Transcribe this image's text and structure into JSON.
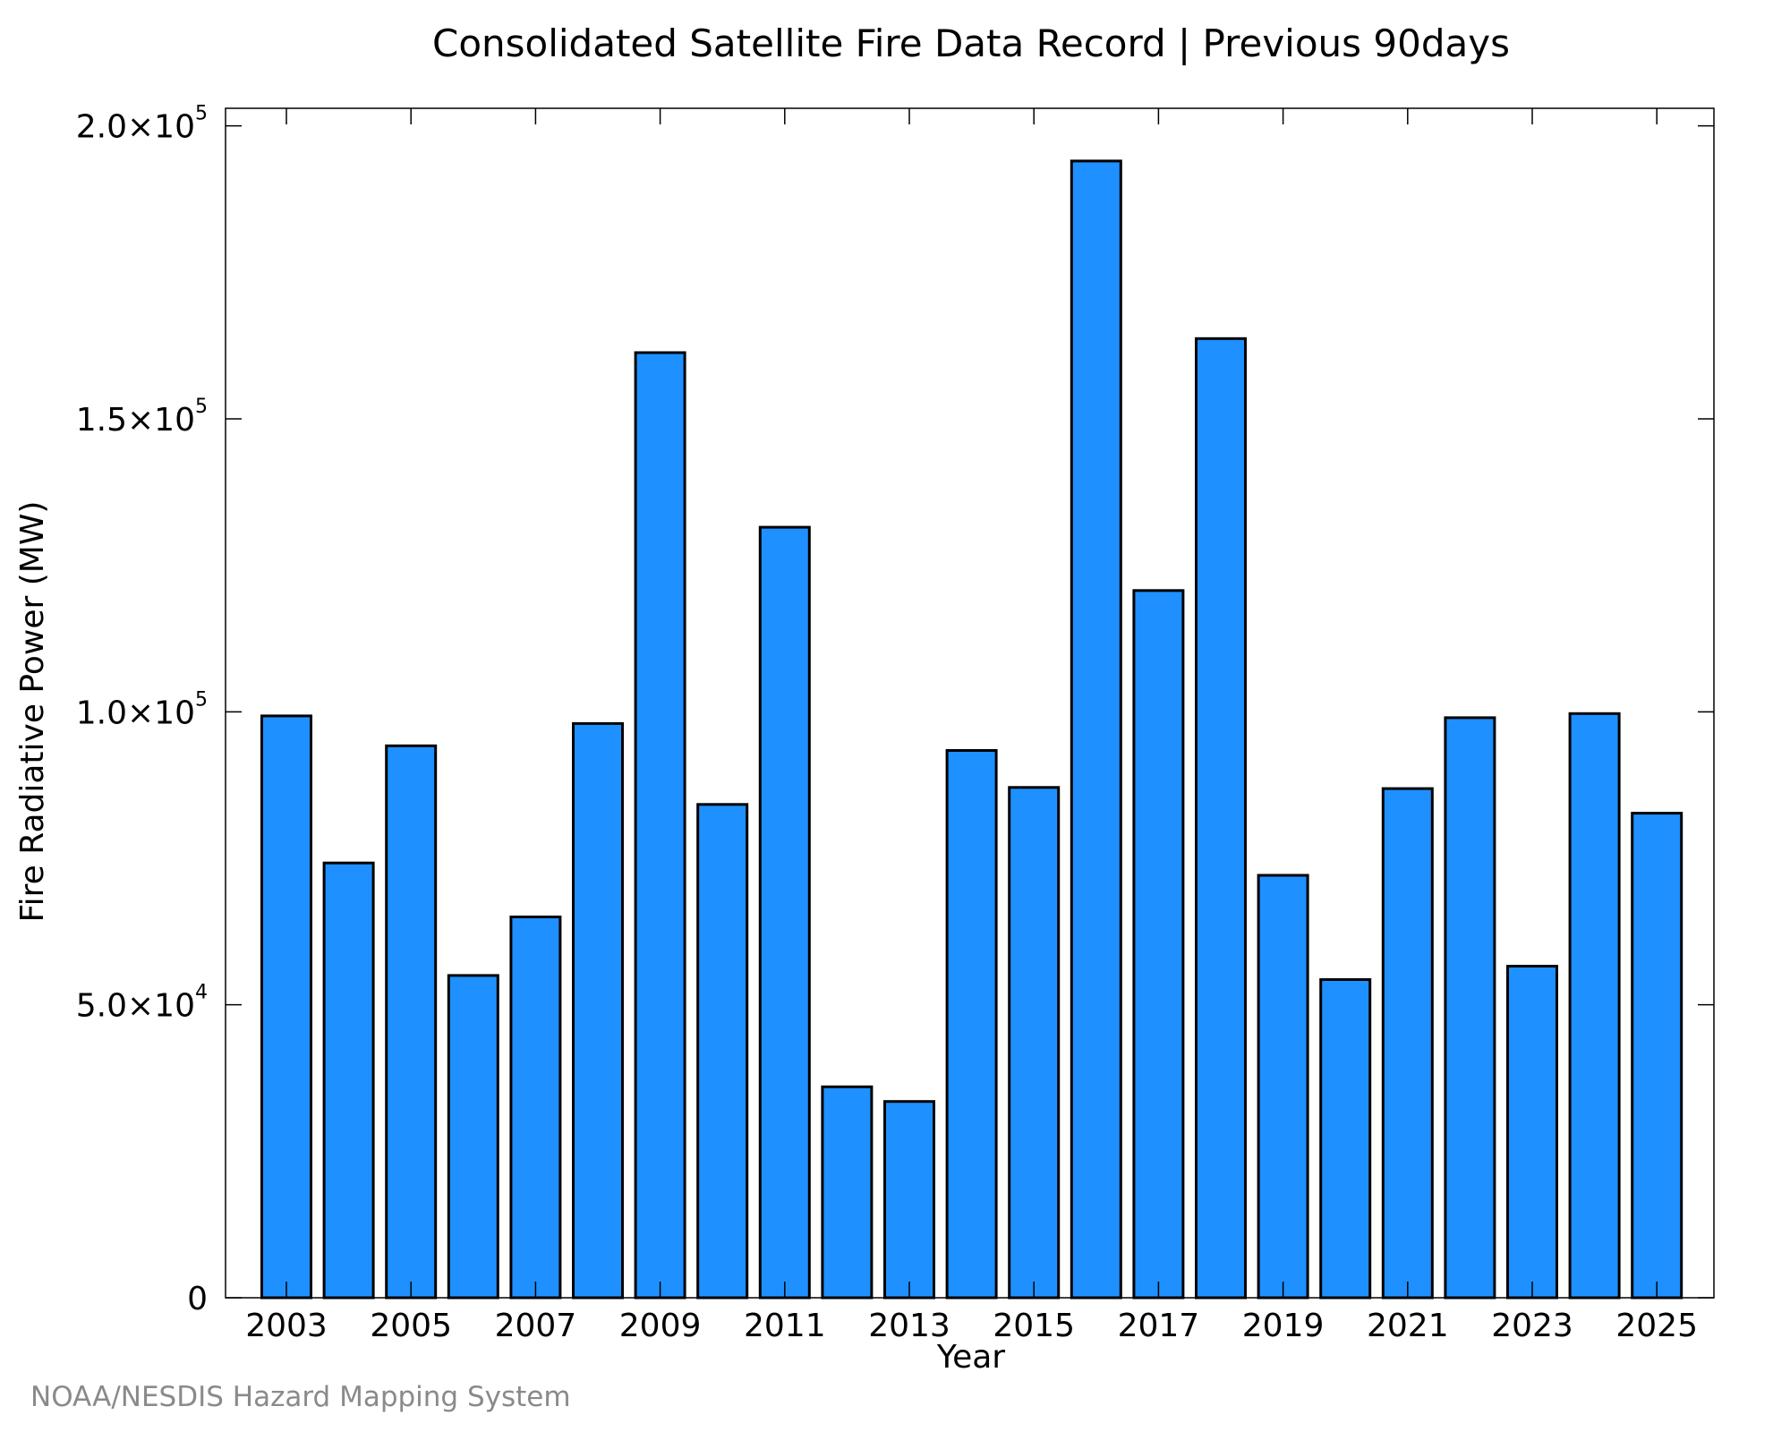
{
  "source_credit": "NOAA/NESDIS Hazard Mapping System",
  "colors": {
    "bar_fill": "#1e90ff",
    "bar_stroke": "#000000",
    "source_text": "#8a8a8a"
  },
  "chart_data": {
    "type": "bar",
    "title": "Consolidated Satellite Fire Data Record | Previous 90days",
    "xlabel": "Year",
    "ylabel": "Fire Radiative Power (MW)",
    "ylim": [
      0,
      203000
    ],
    "grid": false,
    "legend": "none",
    "categories": [
      "2003",
      "2004",
      "2005",
      "2006",
      "2007",
      "2008",
      "2009",
      "2010",
      "2011",
      "2012",
      "2013",
      "2014",
      "2015",
      "2016",
      "2017",
      "2018",
      "2019",
      "2020",
      "2021",
      "2022",
      "2023",
      "2024",
      "2025"
    ],
    "values": [
      99300,
      74200,
      94200,
      55000,
      65000,
      98000,
      161300,
      84200,
      131500,
      36000,
      33500,
      93400,
      87100,
      194000,
      120700,
      163700,
      72100,
      54300,
      86900,
      99000,
      56600,
      99700,
      82700
    ],
    "x_tick_labels": [
      "2003",
      "2005",
      "2007",
      "2009",
      "2011",
      "2013",
      "2015",
      "2017",
      "2019",
      "2021",
      "2023",
      "2025"
    ],
    "y_ticks": [
      {
        "value": 0,
        "mantissa": "0",
        "base": "",
        "exp": ""
      },
      {
        "value": 50000,
        "mantissa": "5.0",
        "base": "×10",
        "exp": "4"
      },
      {
        "value": 100000,
        "mantissa": "1.0",
        "base": "×10",
        "exp": "5"
      },
      {
        "value": 150000,
        "mantissa": "1.5",
        "base": "×10",
        "exp": "5"
      },
      {
        "value": 200000,
        "mantissa": "2.0",
        "base": "×10",
        "exp": "5"
      }
    ]
  }
}
